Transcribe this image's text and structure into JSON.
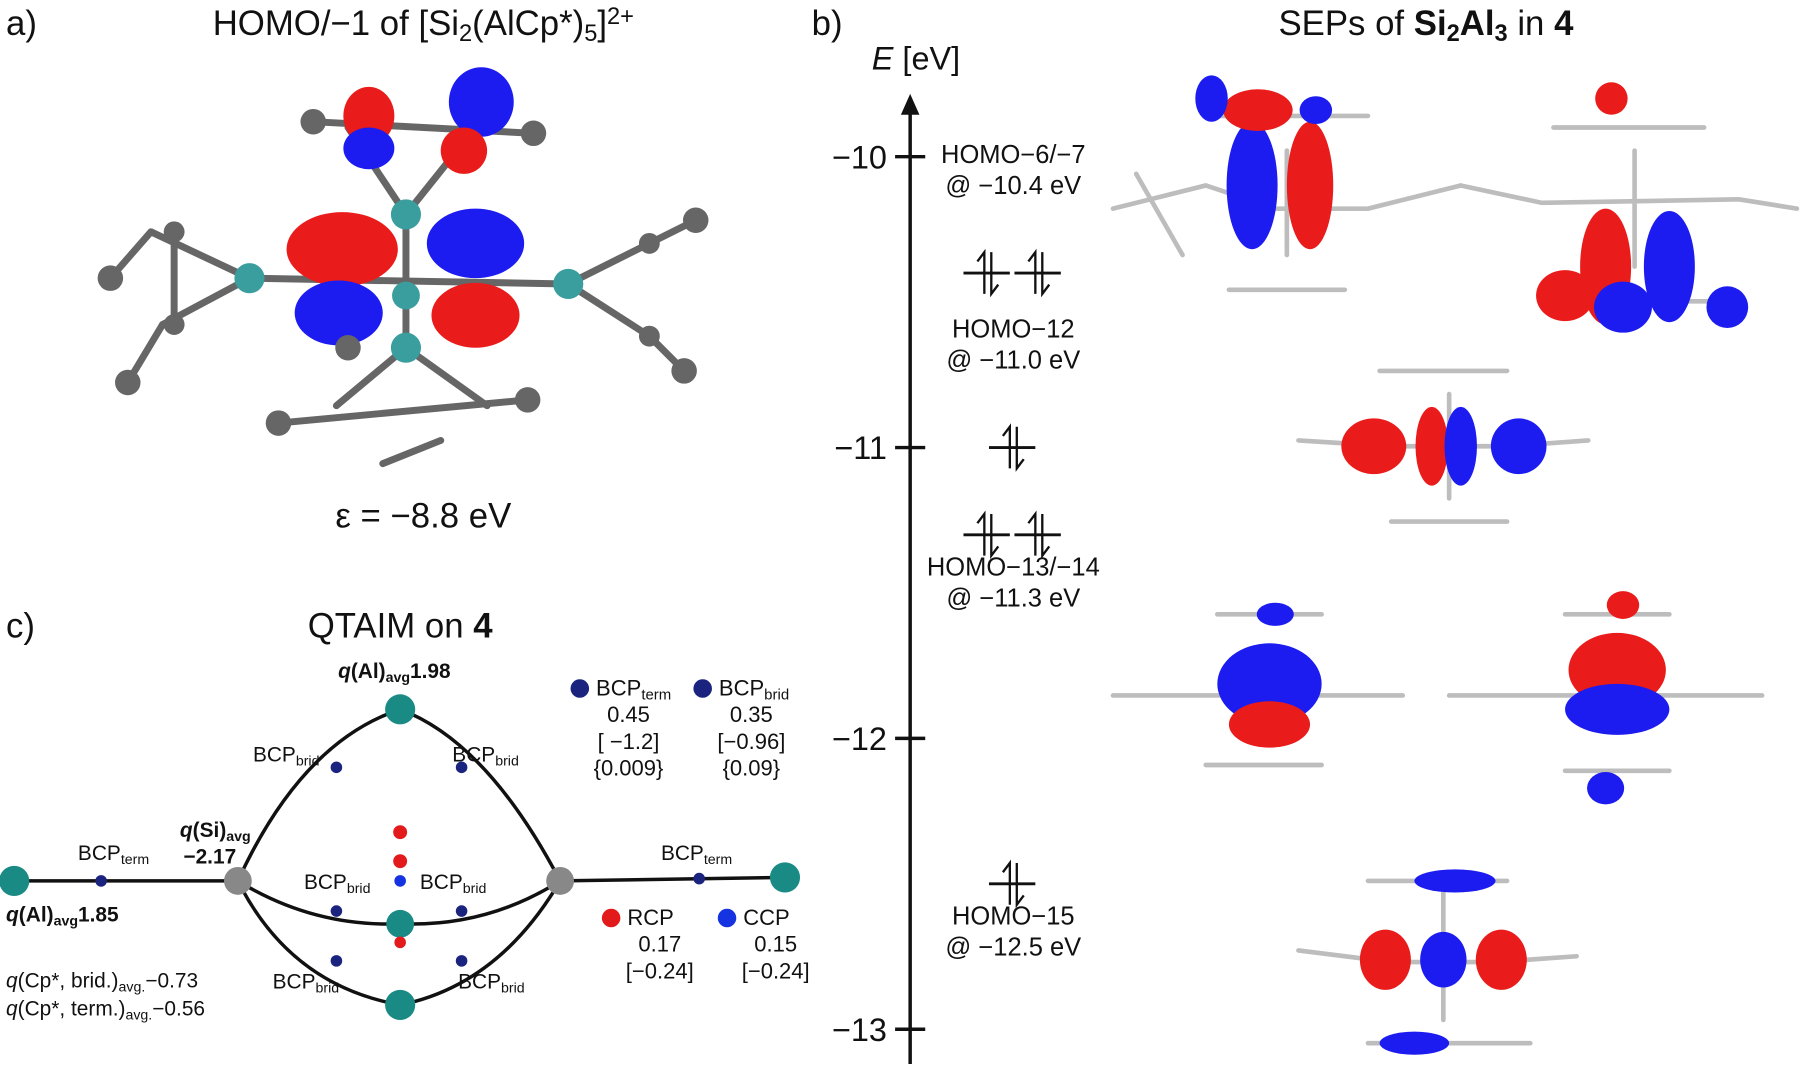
{
  "panel_a": {
    "letter": "a)",
    "title": [
      {
        "t": "HOMO/−1 of [Si"
      },
      {
        "t": "2",
        "shift": "sub"
      },
      {
        "t": "(AlCp*)"
      },
      {
        "t": "5",
        "shift": "sub"
      },
      {
        "t": "]"
      },
      {
        "t": "2+",
        "shift": "sup"
      }
    ],
    "energy": "ε = −8.8 eV"
  },
  "panel_b": {
    "letter": "b)",
    "title": [
      {
        "t": "SEPs of "
      },
      {
        "t": "Si",
        "bold": true
      },
      {
        "t": "2",
        "shift": "sub",
        "bold": true
      },
      {
        "t": "Al",
        "bold": true
      },
      {
        "t": "3",
        "shift": "sub",
        "bold": true
      },
      {
        "t": " in "
      },
      {
        "t": "4",
        "bold": true
      }
    ],
    "axis_label": [
      {
        "t": "E",
        "italic": true
      },
      {
        "t": " [eV]"
      }
    ],
    "ylim": [
      -13,
      -9.8
    ],
    "yticks": [
      {
        "value": -10,
        "label": "−10"
      },
      {
        "value": -11,
        "label": "−11"
      },
      {
        "value": -12,
        "label": "−12"
      },
      {
        "value": -13,
        "label": "−13"
      }
    ],
    "levels": [
      {
        "name": "HOMO−6/−7",
        "energy_label": "@ −10.4 eV",
        "energy": -10.4,
        "orbitals": 2
      },
      {
        "name": "HOMO−12",
        "energy_label": "@ −11.0 eV",
        "energy": -11.0,
        "orbitals": 1
      },
      {
        "name": "HOMO−13/−14",
        "energy_label": "@ −11.3 eV",
        "energy": -11.3,
        "orbitals": 2
      },
      {
        "name": "HOMO−15",
        "energy_label": "@ −12.5 eV",
        "energy": -12.5,
        "orbitals": 1
      }
    ]
  },
  "panel_c": {
    "letter": "c)",
    "title": [
      {
        "t": "QTAIM on "
      },
      {
        "t": "4",
        "bold": true
      }
    ],
    "labels": [
      [
        {
          "t": "q",
          "italic": true,
          "bold": true
        },
        {
          "t": "(Al)",
          "bold": true
        },
        {
          "t": "avg",
          "shift": "sub",
          "bold": true
        },
        {
          "t": "1.98",
          "bold": true
        }
      ],
      [
        {
          "t": "BCP"
        },
        {
          "t": "brid",
          "shift": "sub"
        }
      ],
      [
        {
          "t": "BCP"
        },
        {
          "t": "brid",
          "shift": "sub"
        }
      ],
      [
        {
          "t": "q",
          "italic": true,
          "bold": true
        },
        {
          "t": "(Si)",
          "bold": true
        },
        {
          "t": "avg",
          "shift": "sub",
          "bold": true
        }
      ],
      [
        {
          "t": "−2.17",
          "bold": true
        }
      ],
      [
        {
          "t": "BCP"
        },
        {
          "t": "term",
          "shift": "sub"
        }
      ],
      [
        {
          "t": "BCP"
        },
        {
          "t": "term",
          "shift": "sub"
        }
      ],
      [
        {
          "t": "BCP"
        },
        {
          "t": "brid",
          "shift": "sub"
        }
      ],
      [
        {
          "t": "BCP"
        },
        {
          "t": "brid",
          "shift": "sub"
        }
      ],
      [
        {
          "t": "q",
          "italic": true,
          "bold": true
        },
        {
          "t": "(Al)",
          "bold": true
        },
        {
          "t": "avg",
          "shift": "sub",
          "bold": true
        },
        {
          "t": "1.85",
          "bold": true
        }
      ],
      [
        {
          "t": "BCP"
        },
        {
          "t": "brid",
          "shift": "sub"
        }
      ],
      [
        {
          "t": "BCP"
        },
        {
          "t": "brid",
          "shift": "sub"
        }
      ],
      [
        {
          "t": "q",
          "italic": true
        },
        {
          "t": "(Cp*, brid.)"
        },
        {
          "t": "avg.",
          "shift": "sub"
        },
        {
          "t": "−0.73"
        }
      ],
      [
        {
          "t": "q",
          "italic": true
        },
        {
          "t": "(Cp*, term.)"
        },
        {
          "t": "avg.",
          "shift": "sub"
        },
        {
          "t": "−0.56"
        }
      ]
    ],
    "legend": [
      {
        "name": [
          {
            "t": "BCP"
          },
          {
            "t": "term",
            "shift": "sub"
          }
        ],
        "color": "#1a237e",
        "lines": [
          "0.45",
          "[ −1.2]",
          "{0.009}"
        ]
      },
      {
        "name": [
          {
            "t": "BCP"
          },
          {
            "t": "brid",
            "shift": "sub"
          }
        ],
        "color": "#1a237e",
        "lines": [
          "0.35",
          "[−0.96]",
          "{0.09}"
        ]
      },
      {
        "name": [
          {
            "t": "RCP"
          }
        ],
        "color": "#e31a1c",
        "lines": [
          "0.17",
          "[−0.24]"
        ]
      },
      {
        "name": [
          {
            "t": "CCP"
          }
        ],
        "color": "#1533e0",
        "lines": [
          "0.15",
          "[−0.24]"
        ]
      }
    ]
  }
}
